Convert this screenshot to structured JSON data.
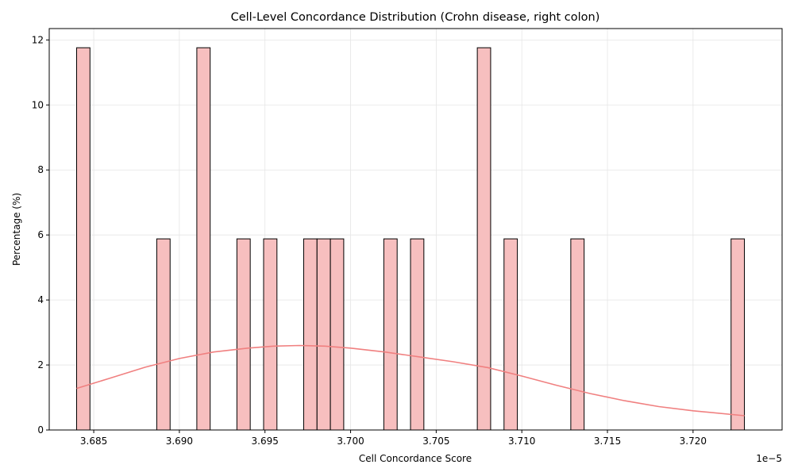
{
  "chart_data": {
    "type": "bar",
    "title": "Cell-Level Concordance Distribution (Crohn disease, right colon)",
    "xlabel": "Cell Concordance Score",
    "ylabel": "Percentage (%)",
    "x_offset_label": "1e−5",
    "xlim": [
      3.6824,
      3.7252
    ],
    "ylim": [
      0,
      12.35
    ],
    "x_ticks": [
      3.685,
      3.69,
      3.695,
      3.7,
      3.705,
      3.71,
      3.715,
      3.72
    ],
    "x_tick_labels": [
      "3.685",
      "3.690",
      "3.695",
      "3.700",
      "3.705",
      "3.710",
      "3.715",
      "3.720"
    ],
    "y_ticks": [
      0,
      2,
      4,
      6,
      8,
      10,
      12
    ],
    "y_tick_labels": [
      "0",
      "2",
      "4",
      "6",
      "8",
      "10",
      "12"
    ],
    "grid": true,
    "bin_width": 0.000779,
    "bins": [
      {
        "x0": 3.684,
        "value": 11.76
      },
      {
        "x0": 3.68868,
        "value": 5.88
      },
      {
        "x0": 3.69102,
        "value": 11.76
      },
      {
        "x0": 3.69336,
        "value": 5.88
      },
      {
        "x0": 3.69492,
        "value": 5.88
      },
      {
        "x0": 3.69726,
        "value": 5.88
      },
      {
        "x0": 3.69804,
        "value": 5.88
      },
      {
        "x0": 3.69882,
        "value": 5.88
      },
      {
        "x0": 3.70194,
        "value": 5.88
      },
      {
        "x0": 3.7035,
        "value": 5.88
      },
      {
        "x0": 3.7074,
        "value": 11.76
      },
      {
        "x0": 3.70896,
        "value": 5.88
      },
      {
        "x0": 3.71286,
        "value": 5.88
      },
      {
        "x0": 3.72222,
        "value": 5.88
      }
    ],
    "kde": {
      "x": [
        3.684,
        3.686,
        3.688,
        3.69,
        3.692,
        3.694,
        3.6955,
        3.697,
        3.6985,
        3.7,
        3.702,
        3.704,
        3.706,
        3.708,
        3.71,
        3.712,
        3.714,
        3.716,
        3.718,
        3.72,
        3.723
      ],
      "y": [
        1.28,
        1.6,
        1.93,
        2.2,
        2.4,
        2.52,
        2.58,
        2.6,
        2.58,
        2.52,
        2.4,
        2.25,
        2.1,
        1.92,
        1.66,
        1.38,
        1.12,
        0.9,
        0.72,
        0.59,
        0.44
      ]
    },
    "colors": {
      "bar_fill": "#f7bfbf",
      "bar_edge": "#000000",
      "kde_line": "#f08080",
      "grid": "#e5e5e5"
    }
  }
}
